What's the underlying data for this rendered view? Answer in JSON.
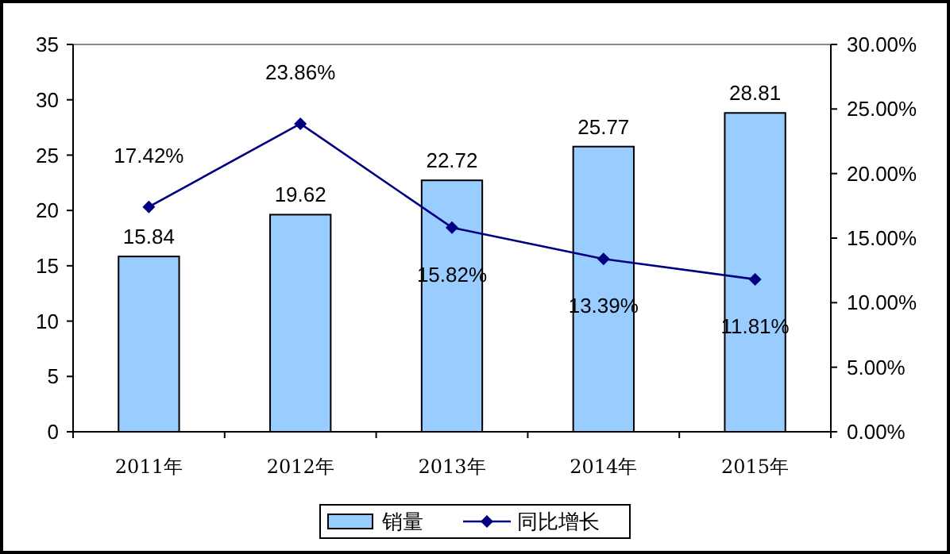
{
  "chart_data": {
    "type": "bar",
    "categories": [
      "2011年",
      "2012年",
      "2013年",
      "2014年",
      "2015年"
    ],
    "series": [
      {
        "name": "销量",
        "color": "#99ccff",
        "values": [
          15.84,
          19.62,
          22.72,
          25.77,
          28.81
        ],
        "value_labels": [
          "15.84",
          "19.62",
          "22.72",
          "25.77",
          "28.81"
        ]
      },
      {
        "name": "同比增长",
        "type": "line",
        "axis": "y2",
        "color": "#000080",
        "marker": "diamond",
        "values": [
          17.42,
          23.86,
          15.82,
          13.39,
          11.81
        ],
        "value_labels": [
          "17.42%",
          "23.86%",
          "15.82%",
          "13.39%",
          "11.81%"
        ]
      }
    ],
    "ylim": [
      0,
      35
    ],
    "yticks": [
      0,
      5,
      10,
      15,
      20,
      25,
      30,
      35
    ],
    "y2lim": [
      0,
      30
    ],
    "y2ticks": [
      {
        "value": 0,
        "label": "0.00%"
      },
      {
        "value": 5,
        "label": "5.00%"
      },
      {
        "value": 10,
        "label": "10.00%"
      },
      {
        "value": 15,
        "label": "15.00%"
      },
      {
        "value": 20,
        "label": "20.00%"
      },
      {
        "value": 25,
        "label": "25.00%"
      },
      {
        "value": 30,
        "label": "30.00%"
      }
    ],
    "grid": false,
    "legend": "bottom"
  }
}
